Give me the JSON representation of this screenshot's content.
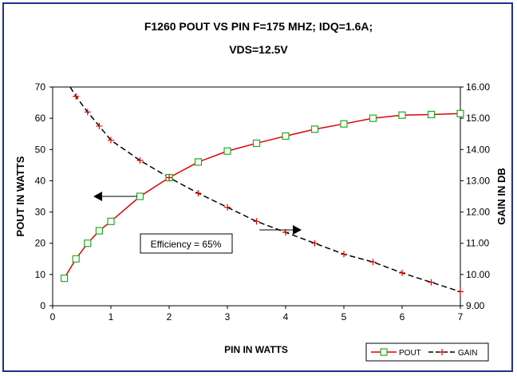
{
  "chart_data": {
    "type": "line",
    "title_line1": "F1260  POUT VS PIN F=175 MHZ; IDQ=1.6A;",
    "title_line2": "VDS=12.5V",
    "xlabel": "PIN IN WATTS",
    "ylabel_left": "POUT IN WATTS",
    "ylabel_right": "GAIN IN DB",
    "xlim": [
      0,
      7
    ],
    "ylim_left": [
      0,
      70
    ],
    "ylim_right": [
      9.0,
      16.0
    ],
    "x_ticks": [
      "0",
      "1",
      "2",
      "3",
      "4",
      "5",
      "6",
      "7"
    ],
    "y_left_ticks": [
      "0",
      "10",
      "20",
      "30",
      "40",
      "50",
      "60",
      "70"
    ],
    "y_right_ticks": [
      "9.00",
      "10.00",
      "11.00",
      "12.00",
      "13.00",
      "14.00",
      "15.00",
      "16.00"
    ],
    "grid": false,
    "legend_position": "bottom-right",
    "annotation": "Efficiency = 65%",
    "series": [
      {
        "name": "POUT",
        "axis": "left",
        "color": "#e00000",
        "marker_color": "#22aa22",
        "marker": "square",
        "line_style": "solid",
        "x": [
          0.2,
          0.4,
          0.6,
          0.8,
          1.0,
          1.5,
          2.0,
          2.5,
          3.0,
          3.5,
          4.0,
          4.5,
          5.0,
          5.5,
          6.0,
          6.5,
          7.0
        ],
        "values": [
          8.8,
          15.0,
          20.0,
          24.0,
          27.0,
          35.0,
          41.0,
          46.0,
          49.5,
          52.0,
          54.3,
          56.5,
          58.2,
          60.0,
          61.0,
          61.2,
          61.5
        ]
      },
      {
        "name": "GAIN",
        "axis": "right",
        "color": "#000000",
        "marker_color": "#e00000",
        "marker": "plus",
        "line_style": "dashed",
        "x": [
          0.4,
          0.6,
          0.8,
          1.0,
          1.5,
          2.0,
          2.5,
          3.0,
          3.5,
          4.0,
          4.5,
          5.0,
          5.5,
          6.0,
          6.5,
          7.0
        ],
        "values": [
          15.7,
          15.2,
          14.75,
          14.3,
          13.65,
          13.1,
          12.6,
          12.15,
          11.7,
          11.35,
          11.0,
          10.65,
          10.4,
          10.05,
          9.75,
          9.45
        ]
      }
    ],
    "gain_line_start": {
      "x": 0.3,
      "value": 16.35
    }
  }
}
